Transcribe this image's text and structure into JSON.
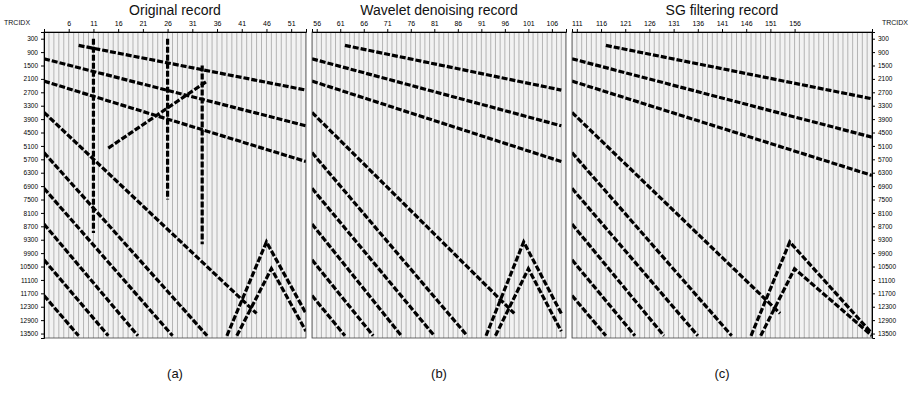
{
  "chart_data": [
    {
      "type": "seismic",
      "title": "Original record",
      "annotation": "(a)",
      "ylabel": "TRCIDX",
      "xlim": [
        1,
        54
      ],
      "xticks": [
        6,
        11,
        16,
        21,
        26,
        31,
        36,
        41,
        46,
        51
      ],
      "ylim": [
        0,
        13700
      ],
      "yticks": [
        300,
        900,
        1500,
        2100,
        2700,
        3300,
        3900,
        4500,
        5100,
        5700,
        6300,
        6900,
        7500,
        8100,
        8700,
        9300,
        9900,
        10500,
        11100,
        11700,
        12300,
        12900,
        13500
      ],
      "events": [
        {
          "x": [
            1,
            54
          ],
          "y": [
            1200,
            4200
          ]
        },
        {
          "x": [
            1,
            54
          ],
          "y": [
            2200,
            5800
          ]
        },
        {
          "x": [
            8,
            54
          ],
          "y": [
            600,
            2600
          ]
        },
        {
          "x": [
            1,
            44
          ],
          "y": [
            3600,
            12600
          ]
        },
        {
          "x": [
            1,
            34
          ],
          "y": [
            5400,
            13600
          ]
        },
        {
          "x": [
            1,
            27
          ],
          "y": [
            7000,
            13600
          ]
        },
        {
          "x": [
            1,
            20
          ],
          "y": [
            8600,
            13600
          ]
        },
        {
          "x": [
            1,
            14
          ],
          "y": [
            10200,
            13600
          ]
        },
        {
          "x": [
            1,
            8
          ],
          "y": [
            11800,
            13600
          ]
        },
        {
          "x": [
            38,
            46,
            54
          ],
          "y": [
            13600,
            9400,
            12600
          ]
        },
        {
          "x": [
            40,
            47,
            54
          ],
          "y": [
            13600,
            10600,
            13400
          ]
        },
        {
          "x": [
            14,
            34
          ],
          "y": [
            5200,
            2200
          ]
        },
        {
          "x": [
            11,
            11
          ],
          "y": [
            300,
            9000
          ]
        },
        {
          "x": [
            26,
            26
          ],
          "y": [
            300,
            7500
          ]
        },
        {
          "x": [
            33,
            33
          ],
          "y": [
            1500,
            9500
          ]
        }
      ]
    },
    {
      "type": "seismic",
      "title": "Wavelet denoising record",
      "annotation": "(b)",
      "xlim": [
        55,
        109
      ],
      "xticks": [
        56,
        61,
        66,
        71,
        76,
        81,
        86,
        91,
        96,
        101,
        106
      ],
      "ylim": [
        0,
        13700
      ],
      "events": [
        {
          "x": [
            55,
            108
          ],
          "y": [
            1200,
            4200
          ]
        },
        {
          "x": [
            55,
            108
          ],
          "y": [
            2200,
            5800
          ]
        },
        {
          "x": [
            62,
            108
          ],
          "y": [
            600,
            2600
          ]
        },
        {
          "x": [
            55,
            98
          ],
          "y": [
            3600,
            12600
          ]
        },
        {
          "x": [
            55,
            88
          ],
          "y": [
            5400,
            13600
          ]
        },
        {
          "x": [
            55,
            81
          ],
          "y": [
            7000,
            13600
          ]
        },
        {
          "x": [
            55,
            74
          ],
          "y": [
            8600,
            13600
          ]
        },
        {
          "x": [
            55,
            68
          ],
          "y": [
            10200,
            13600
          ]
        },
        {
          "x": [
            55,
            62
          ],
          "y": [
            11800,
            13600
          ]
        },
        {
          "x": [
            92,
            100,
            108
          ],
          "y": [
            13600,
            9400,
            12600
          ]
        },
        {
          "x": [
            94,
            101,
            108
          ],
          "y": [
            13600,
            10600,
            13400
          ]
        }
      ]
    },
    {
      "type": "seismic",
      "title": "SG filtering record",
      "annotation": "(c)",
      "ylabel": "TRCIDX",
      "xlim": [
        110,
        172
      ],
      "xticks": [
        111,
        116,
        121,
        126,
        131,
        136,
        141,
        146,
        151,
        156
      ],
      "ylim": [
        0,
        13700
      ],
      "yticks": [
        300,
        900,
        1500,
        2100,
        2700,
        3300,
        3900,
        4500,
        5100,
        5700,
        6300,
        6900,
        7500,
        8100,
        8700,
        9300,
        9900,
        10500,
        11100,
        11700,
        12300,
        12900,
        13500
      ],
      "events": [
        {
          "x": [
            110,
            172
          ],
          "y": [
            1200,
            4710
          ]
        },
        {
          "x": [
            110,
            172
          ],
          "y": [
            2200,
            6420
          ]
        },
        {
          "x": [
            117,
            172
          ],
          "y": [
            600,
            2990
          ]
        },
        {
          "x": [
            110,
            153
          ],
          "y": [
            3600,
            12600
          ]
        },
        {
          "x": [
            110,
            143
          ],
          "y": [
            5400,
            13600
          ]
        },
        {
          "x": [
            110,
            136
          ],
          "y": [
            7000,
            13600
          ]
        },
        {
          "x": [
            110,
            129
          ],
          "y": [
            8600,
            13600
          ]
        },
        {
          "x": [
            110,
            123
          ],
          "y": [
            10200,
            13600
          ]
        },
        {
          "x": [
            110,
            117
          ],
          "y": [
            11800,
            13600
          ]
        },
        {
          "x": [
            147,
            155,
            172
          ],
          "y": [
            13600,
            9400,
            13500
          ]
        },
        {
          "x": [
            149,
            156,
            172
          ],
          "y": [
            13600,
            10600,
            13600
          ]
        }
      ]
    }
  ]
}
